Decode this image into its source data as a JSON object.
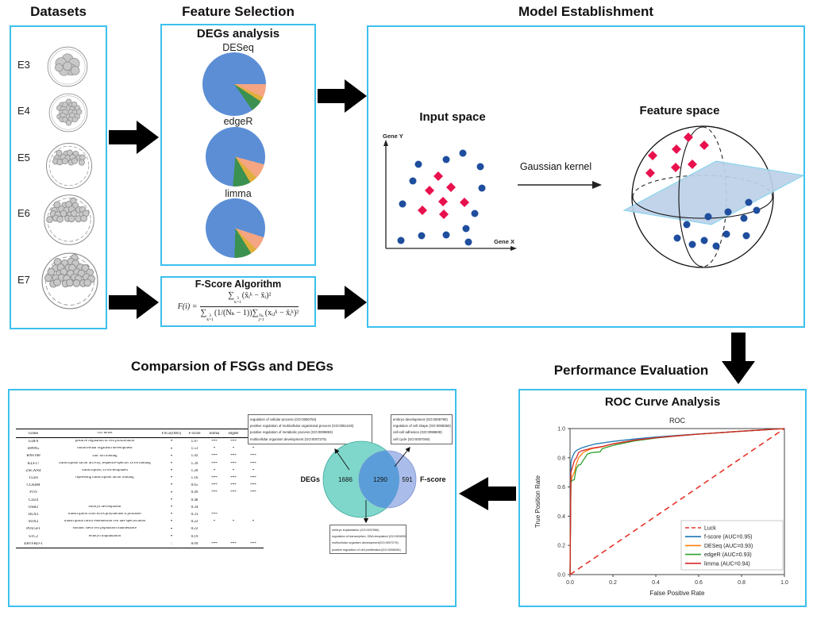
{
  "palette": {
    "box_border": "#3cc0ee",
    "arrow": "#000000",
    "pie_blue": "#5b8ed5",
    "pie_salmon": "#f5a582",
    "pie_gold": "#dfaf3c",
    "pie_green": "#3a9150",
    "dot_navy": "#1e4e9d",
    "diamond_red": "#e8104d",
    "plane_fill": "#bcd0e8",
    "plane_edge": "#7fd4ee",
    "venn_left": "#7fd7cc",
    "venn_right": "#aabdea",
    "venn_overlap": "#5b9dd8"
  },
  "sections": {
    "datasets": {
      "title": "Datasets",
      "stages": [
        {
          "label": "E3"
        },
        {
          "label": "E4"
        },
        {
          "label": "E5"
        },
        {
          "label": "E6"
        },
        {
          "label": "E7"
        }
      ]
    },
    "feature_selection": {
      "title": "Feature Selection",
      "degs_heading": "DEGs analysis",
      "fscore_heading": "F-Score Algorithm",
      "formula": {
        "lhs": "F(i) =",
        "sigma": "∑",
        "num": {
          "sup": "3",
          "sub": "k=1",
          "body": "(x̄ᵢᵏ − x̄ᵢ)²"
        },
        "den1": {
          "sup": "3",
          "sub": "k=1",
          "body": "(1/(Nₖ − 1))"
        },
        "den2": {
          "sup": "Nₖ",
          "sub": "j=1",
          "body": "(xᵢⱼᵏ − x̄ᵢᵏ)²"
        }
      }
    },
    "model": {
      "title": "Model Establishment",
      "input_label": "Input space",
      "feature_label": "Feature space",
      "kernel_label": "Gaussian kernel",
      "x_axis": "Gene X",
      "y_axis": "Gene Y"
    },
    "performance": {
      "title": "Performance Evaluation",
      "heading": "ROC Curve Analysis"
    },
    "comparison": {
      "title": "Comparsion of FSGs and DEGs"
    }
  },
  "chart_data": [
    {
      "id": "pie_deseq",
      "type": "pie",
      "title": "DESeq",
      "start_angle_deg": 0,
      "slices": [
        {
          "color": "#f5a582",
          "value": 6.7
        },
        {
          "color": "#dfaf3c",
          "value": 2.5
        },
        {
          "color": "#3a9150",
          "value": 6.1
        },
        {
          "color": "#5b8ed5",
          "value": 84.7
        }
      ]
    },
    {
      "id": "pie_edger",
      "type": "pie",
      "title": "edgeR",
      "start_angle_deg": 15,
      "slices": [
        {
          "color": "#f5a582",
          "value": 8.3
        },
        {
          "color": "#dfaf3c",
          "value": 4.2
        },
        {
          "color": "#3a9150",
          "value": 9.7
        },
        {
          "color": "#5b8ed5",
          "value": 77.8
        }
      ]
    },
    {
      "id": "pie_limma",
      "type": "pie",
      "title": "limma",
      "start_angle_deg": 18,
      "slices": [
        {
          "color": "#f5a582",
          "value": 7.5
        },
        {
          "color": "#dfaf3c",
          "value": 3.6
        },
        {
          "color": "#3a9150",
          "value": 9.4
        },
        {
          "color": "#5b8ed5",
          "value": 79.5
        }
      ]
    },
    {
      "id": "input_scatter",
      "type": "scatter",
      "xlabel": "Gene X",
      "ylabel": "Gene Y",
      "series": [
        {
          "name": "class-negative",
          "marker": "circle",
          "color": "#1e4e9d",
          "points": [
            [
              527,
              207
            ],
            [
              562,
              201
            ],
            [
              583,
              193
            ],
            [
              605,
              210
            ],
            [
              520,
              228
            ],
            [
              607,
              237
            ],
            [
              507,
              257
            ],
            [
              598,
              269
            ],
            [
              587,
              288
            ],
            [
              505,
              303
            ],
            [
              531,
              297
            ],
            [
              562,
              296
            ],
            [
              590,
              305
            ]
          ]
        },
        {
          "name": "class-positive",
          "marker": "diamond",
          "color": "#e8104d",
          "points": [
            [
              552,
              222
            ],
            [
              568,
              236
            ],
            [
              541,
              240
            ],
            [
              558,
              254
            ],
            [
              585,
              255
            ],
            [
              532,
              265
            ],
            [
              559,
              270
            ]
          ]
        }
      ]
    },
    {
      "id": "feature_space",
      "type": "scatter",
      "series": [
        {
          "name": "class-positive",
          "marker": "diamond",
          "color": "#e8104d",
          "points": [
            [
              867,
              173
            ],
            [
              887,
              183
            ],
            [
              852,
              188
            ],
            [
              822,
              196
            ],
            [
              851,
              211
            ],
            [
              872,
              207
            ],
            [
              819,
              218
            ]
          ]
        },
        {
          "name": "class-negative",
          "marker": "circle",
          "color": "#1e4e9d",
          "points": [
            [
              943,
              255
            ],
            [
              953,
              265
            ],
            [
              937,
              275
            ],
            [
              892,
              273
            ],
            [
              917,
              267
            ],
            [
              865,
              283
            ],
            [
              853,
              300
            ],
            [
              887,
              303
            ],
            [
              902,
              310
            ],
            [
              915,
              295
            ],
            [
              940,
              297
            ],
            [
              872,
              308
            ]
          ]
        }
      ]
    },
    {
      "id": "roc",
      "type": "line",
      "title": "ROC",
      "xlabel": "False Positive Rate",
      "ylabel": "True Position Rate",
      "xlim": [
        0.0,
        1.0
      ],
      "ylim": [
        0.0,
        1.0
      ],
      "xticks": [
        0.0,
        0.2,
        0.4,
        0.6,
        0.8,
        1.0
      ],
      "yticks": [
        0.0,
        0.2,
        0.4,
        0.6,
        0.8,
        1.0
      ],
      "legend_position": "lower right",
      "series": [
        {
          "name": "Luck",
          "color": "#e63328",
          "style": "dashed",
          "points": [
            [
              0,
              0
            ],
            [
              1,
              1
            ]
          ]
        },
        {
          "name": "f-score (AUC=0.95)",
          "color": "#1f77b4",
          "style": "solid",
          "points": [
            [
              0,
              0
            ],
            [
              0.004,
              0.77
            ],
            [
              0.01,
              0.8
            ],
            [
              0.02,
              0.835
            ],
            [
              0.03,
              0.85
            ],
            [
              0.05,
              0.865
            ],
            [
              0.08,
              0.88
            ],
            [
              0.12,
              0.895
            ],
            [
              0.2,
              0.912
            ],
            [
              0.3,
              0.928
            ],
            [
              0.4,
              0.942
            ],
            [
              0.5,
              0.953
            ],
            [
              0.6,
              0.963
            ],
            [
              0.7,
              0.972
            ],
            [
              0.8,
              0.982
            ],
            [
              0.9,
              0.991
            ],
            [
              1,
              1
            ]
          ]
        },
        {
          "name": "DESeq (AUC=0.93)",
          "color": "#ff7f0e",
          "style": "solid",
          "points": [
            [
              0,
              0
            ],
            [
              0.004,
              0.64
            ],
            [
              0.01,
              0.67
            ],
            [
              0.02,
              0.7
            ],
            [
              0.03,
              0.76
            ],
            [
              0.04,
              0.8
            ],
            [
              0.06,
              0.835
            ],
            [
              0.08,
              0.85
            ],
            [
              0.1,
              0.862
            ],
            [
              0.15,
              0.875
            ],
            [
              0.2,
              0.895
            ],
            [
              0.3,
              0.92
            ],
            [
              0.4,
              0.937
            ],
            [
              0.5,
              0.95
            ],
            [
              0.6,
              0.962
            ],
            [
              0.7,
              0.972
            ],
            [
              0.8,
              0.982
            ],
            [
              0.9,
              0.991
            ],
            [
              1,
              1
            ]
          ]
        },
        {
          "name": "edgeR (AUC=0.93)",
          "color": "#2ca02c",
          "style": "solid",
          "points": [
            [
              0,
              0
            ],
            [
              0.004,
              0.63
            ],
            [
              0.01,
              0.645
            ],
            [
              0.02,
              0.65
            ],
            [
              0.025,
              0.7
            ],
            [
              0.03,
              0.73
            ],
            [
              0.04,
              0.75
            ],
            [
              0.05,
              0.755
            ],
            [
              0.06,
              0.78
            ],
            [
              0.07,
              0.8
            ],
            [
              0.08,
              0.825
            ],
            [
              0.1,
              0.835
            ],
            [
              0.12,
              0.838
            ],
            [
              0.14,
              0.84
            ],
            [
              0.15,
              0.862
            ],
            [
              0.2,
              0.885
            ],
            [
              0.3,
              0.915
            ],
            [
              0.4,
              0.935
            ],
            [
              0.5,
              0.95
            ],
            [
              0.6,
              0.962
            ],
            [
              0.7,
              0.972
            ],
            [
              0.8,
              0.982
            ],
            [
              0.9,
              0.991
            ],
            [
              1,
              1
            ]
          ]
        },
        {
          "name": "limma (AUC=0.94)",
          "color": "#d62728",
          "style": "solid",
          "points": [
            [
              0,
              0
            ],
            [
              0.004,
              0.7
            ],
            [
              0.01,
              0.73
            ],
            [
              0.02,
              0.78
            ],
            [
              0.03,
              0.8
            ],
            [
              0.04,
              0.835
            ],
            [
              0.05,
              0.845
            ],
            [
              0.06,
              0.85
            ],
            [
              0.08,
              0.857
            ],
            [
              0.1,
              0.865
            ],
            [
              0.15,
              0.877
            ],
            [
              0.2,
              0.895
            ],
            [
              0.3,
              0.92
            ],
            [
              0.4,
              0.937
            ],
            [
              0.5,
              0.95
            ],
            [
              0.6,
              0.962
            ],
            [
              0.7,
              0.972
            ],
            [
              0.8,
              0.982
            ],
            [
              0.9,
              0.991
            ],
            [
              1,
              1
            ]
          ]
        }
      ]
    },
    {
      "id": "venn",
      "type": "venn",
      "left_label": "DEGs",
      "right_label": "F-score",
      "left_only": "1686",
      "intersection": "1290",
      "right_only": "591",
      "callout_top_left": [
        "regulation of cellular process (GO:0050794)",
        "positive regulation of multicellular organismal process (GO:0051240)",
        "positive regulation of metabolic process (GO:0009893)",
        "multicellular organism development (GO:0007275)"
      ],
      "callout_top_right": [
        "embryo development (GO:0009790)",
        "regulation of cell shape (GO:0008360)",
        "cell-cell adhesion (GO:0098609)",
        "cell cycle (GO:0007049)"
      ],
      "callout_bottom": [
        "embryo implantation (GO:0007566)",
        "regulation of transcription, DNA-templated (GO:0006355)",
        "multicellular organism development(GO:0007275)",
        "positive regulation of cell proliferation(GO:0008284)"
      ]
    },
    {
      "id": "go_table",
      "type": "table",
      "headers": [
        "Genes",
        "GO terms",
        "FSGs(1881)",
        "F-score",
        "limma",
        "edgeR",
        "DESeq"
      ],
      "rows": [
        [
          "GDF9",
          "positive regulation of cell proliferation",
          "•",
          "1.97",
          "***",
          "***",
          "***"
        ],
        [
          "DPPA5",
          "multicellular organism development",
          "•",
          "1.51",
          "*",
          "*",
          "*"
        ],
        [
          "RNF168",
          "zinc ion binding",
          "•",
          "1.42",
          "***",
          "***",
          "***"
        ],
        [
          "KLF17",
          "transcription factor activity, sequence-specific DNA binding",
          "•",
          "1.39",
          "***",
          "***",
          "***"
        ],
        [
          "ZSCAN4",
          "transcription, DNA-templated",
          "•",
          "1.20",
          "*",
          "*",
          "*"
        ],
        [
          "TLE6",
          "repressing transcription factor binding",
          "•",
          "1.16",
          "***",
          "***",
          "***"
        ],
        [
          "CCKBR",
          "",
          "•",
          "0.65",
          "***",
          "***",
          "***"
        ],
        [
          "PTN",
          "",
          "•",
          "0.49",
          "***",
          "***",
          "***"
        ],
        [
          "CD24",
          "",
          "•",
          "0.48",
          "",
          "",
          ""
        ],
        [
          "OSR2",
          "embryo development",
          "•",
          "0.34",
          "",
          "",
          ""
        ],
        [
          "DLX3",
          "transcription from RNA polymerase II promoter",
          "•",
          "0.31",
          "***",
          "",
          ""
        ],
        [
          "SOX2",
          "transcription factor endodermal cell fate specification",
          "•",
          "0.22",
          "*",
          "*",
          "*"
        ],
        [
          "POU5F1",
          "somatic stem cell population maintenance",
          "•",
          "0.22",
          "",
          "",
          ""
        ],
        [
          "STC2",
          "embryo implantation",
          "•",
          "0.19",
          "",
          "",
          ""
        ],
        [
          "ERVFRD-1",
          "",
          ":",
          "0.09",
          "***",
          "***",
          "***"
        ]
      ]
    }
  ]
}
